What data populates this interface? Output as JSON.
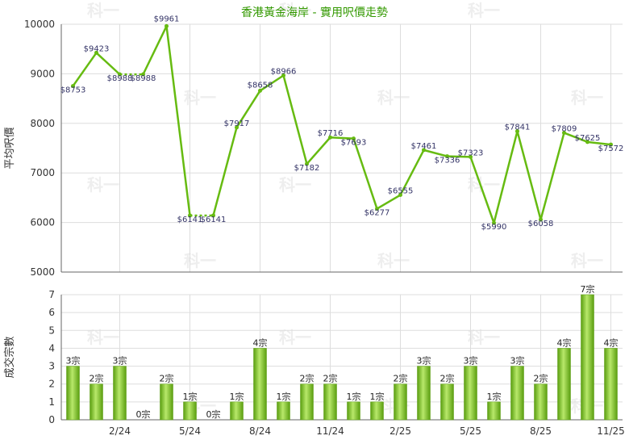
{
  "colors": {
    "line": "#66bb11",
    "bar_light": "#b8e86a",
    "bar_dark": "#5a9e10",
    "grid": "#dddddd",
    "axis": "#666666",
    "title": "#339900",
    "label": "#333366",
    "watermark": "#eeeeee"
  },
  "watermark_text": "科一",
  "chart_data": [
    {
      "type": "line",
      "title": "香港黃金海岸 - 實用呎價走勢",
      "ylabel": "平均呎價",
      "ylim": [
        5000,
        10000
      ],
      "yticks": [
        "5000",
        "6000",
        "7000",
        "8000",
        "9000",
        "10000"
      ],
      "grid": true,
      "x_tick_labels": [
        "2/24",
        "5/24",
        "8/24",
        "11/24",
        "2/25",
        "5/25",
        "8/25",
        "11/25"
      ],
      "series": [
        {
          "values": [
            8753,
            9423,
            8988,
            8988,
            9961,
            6141,
            6141,
            7917,
            8658,
            8966,
            7182,
            7716,
            7693,
            6277,
            6555,
            7461,
            7336,
            7323,
            5990,
            7841,
            6058,
            7809,
            7625,
            7572
          ],
          "labels": [
            "$8753",
            "$9423",
            "$8988",
            "$8988",
            "$9961",
            "$6141",
            "$6141",
            "$7917",
            "$8658",
            "$8966",
            "$7182",
            "$7716",
            "$7693",
            "$6277",
            "$6555",
            "$7461",
            "$7336",
            "$7323",
            "$5990",
            "$7841",
            "$6058",
            "$7809",
            "$7625",
            "$7572"
          ],
          "carried_forward": [
            false,
            false,
            false,
            true,
            false,
            false,
            true,
            false,
            false,
            false,
            false,
            false,
            false,
            false,
            false,
            false,
            false,
            false,
            false,
            false,
            false,
            false,
            false,
            false
          ]
        }
      ]
    },
    {
      "type": "bar",
      "ylabel": "成交宗數",
      "ylim": [
        0,
        7
      ],
      "yticks": [
        "0",
        "1",
        "2",
        "3",
        "4",
        "5",
        "6",
        "7"
      ],
      "grid": true,
      "x_tick_labels": [
        "2/24",
        "5/24",
        "8/24",
        "11/24",
        "2/25",
        "5/25",
        "8/25",
        "11/25"
      ],
      "values": [
        3,
        2,
        3,
        0,
        2,
        1,
        0,
        1,
        4,
        1,
        2,
        2,
        1,
        1,
        2,
        3,
        2,
        3,
        1,
        3,
        2,
        4,
        7,
        4
      ],
      "labels": [
        "3宗",
        "2宗",
        "3宗",
        "0宗",
        "2宗",
        "1宗",
        "0宗",
        "1宗",
        "4宗",
        "1宗",
        "2宗",
        "2宗",
        "1宗",
        "1宗",
        "2宗",
        "3宗",
        "2宗",
        "3宗",
        "1宗",
        "3宗",
        "2宗",
        "4宗",
        "7宗",
        "4宗"
      ]
    }
  ]
}
